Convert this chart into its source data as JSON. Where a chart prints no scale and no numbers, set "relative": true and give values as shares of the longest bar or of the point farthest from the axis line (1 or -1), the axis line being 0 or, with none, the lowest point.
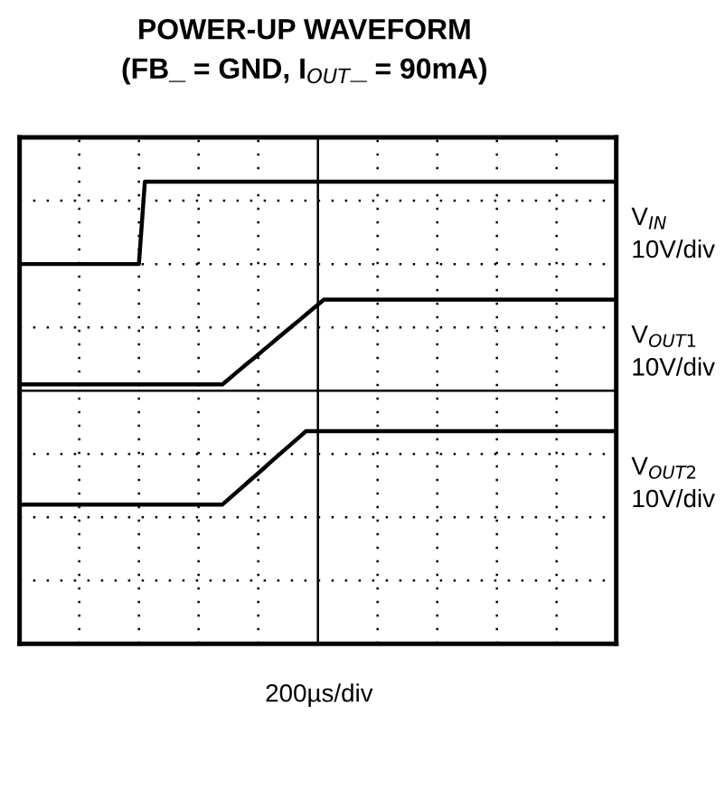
{
  "chart_data": {
    "type": "line",
    "relative": true,
    "title": "POWER-UP WAVEFORM",
    "subtitle": "(FB_ = GND, I$_{OUT}$_ = 90mA)",
    "grid": true,
    "line_style": "solid",
    "annotations": [
      "10V/div",
      "10V/div",
      "10V/div",
      "200µs/div"
    ],
    "categories": [
      null,
      null,
      null,
      null,
      null,
      null,
      null,
      null,
      null,
      null,
      null,
      null,
      null,
      null,
      null,
      null,
      null,
      null,
      null,
      null,
      null,
      null,
      null,
      null,
      null,
      null,
      null,
      null,
      null,
      null,
      null,
      null,
      null,
      null,
      null,
      null,
      null,
      null,
      null,
      null,
      null,
      null,
      null,
      null,
      null,
      null,
      null,
      null,
      null,
      null,
      null,
      null,
      null,
      null,
      null,
      null,
      null,
      null,
      null,
      null,
      null,
      null,
      null,
      null,
      null,
      null,
      null,
      null,
      null,
      null,
      null,
      null,
      null,
      null,
      null,
      null,
      null,
      null,
      null,
      null,
      null,
      null,
      null,
      null,
      null,
      null,
      null,
      null,
      null,
      null,
      null,
      null,
      null,
      null,
      null,
      null,
      null,
      null,
      null,
      null,
      null
    ],
    "series": [
      {
        "name": "V$_{IN}$",
        "color": "#000000",
        "values": [
          0.606,
          0.606,
          0.606,
          0.606,
          0.606,
          0.606,
          0.606,
          0.606,
          0.606,
          0.606,
          0.606,
          0.606,
          0.606,
          0.606,
          0.606,
          0.606,
          0.606,
          0.606,
          0.606,
          0.606,
          0.606,
          1,
          1,
          1,
          1,
          1,
          1,
          1,
          1,
          1,
          1,
          1,
          1,
          1,
          1,
          1,
          1,
          1,
          1,
          1,
          1,
          1,
          1,
          1,
          1,
          1,
          1,
          1,
          1,
          1,
          1,
          1,
          1,
          1,
          1,
          1,
          1,
          1,
          1,
          1,
          1,
          1,
          1,
          1,
          1,
          1,
          1,
          1,
          1,
          1,
          1,
          1,
          1,
          1,
          1,
          1,
          1,
          1,
          1,
          1,
          1,
          1,
          1,
          1,
          1,
          1,
          1,
          1,
          1,
          1,
          1,
          1,
          1,
          1,
          1,
          1,
          1,
          1,
          1,
          1,
          1
        ]
      },
      {
        "name": "V$_{OUT1}$",
        "color": "#000000",
        "values": [
          0.03,
          0.03,
          0.03,
          0.03,
          0.03,
          0.03,
          0.03,
          0.03,
          0.03,
          0.03,
          0.03,
          0.03,
          0.03,
          0.03,
          0.03,
          0.03,
          0.03,
          0.03,
          0.03,
          0.03,
          0.03,
          0.03,
          0.03,
          0.03,
          0.03,
          0.03,
          0.03,
          0.03,
          0.03,
          0.03,
          0.03,
          0.03,
          0.03,
          0.03,
          0.03,
          0.054,
          0.078,
          0.102,
          0.126,
          0.149,
          0.173,
          0.197,
          0.221,
          0.245,
          0.269,
          0.293,
          0.317,
          0.34,
          0.364,
          0.388,
          0.412,
          0.436,
          0.436,
          0.436,
          0.436,
          0.436,
          0.436,
          0.436,
          0.436,
          0.436,
          0.436,
          0.436,
          0.436,
          0.436,
          0.436,
          0.436,
          0.436,
          0.436,
          0.436,
          0.436,
          0.436,
          0.436,
          0.436,
          0.436,
          0.436,
          0.436,
          0.436,
          0.436,
          0.436,
          0.436,
          0.436,
          0.436,
          0.436,
          0.436,
          0.436,
          0.436,
          0.436,
          0.436,
          0.436,
          0.436,
          0.436,
          0.436,
          0.436,
          0.436,
          0.436,
          0.436,
          0.436,
          0.436,
          0.436,
          0.436,
          0.436
        ]
      },
      {
        "name": "V$_{OUT2}$",
        "color": "#000000",
        "values": [
          -0.545,
          -0.545,
          -0.545,
          -0.545,
          -0.545,
          -0.545,
          -0.545,
          -0.545,
          -0.545,
          -0.545,
          -0.545,
          -0.545,
          -0.545,
          -0.545,
          -0.545,
          -0.545,
          -0.545,
          -0.545,
          -0.545,
          -0.545,
          -0.545,
          -0.545,
          -0.545,
          -0.545,
          -0.545,
          -0.545,
          -0.545,
          -0.545,
          -0.545,
          -0.545,
          -0.545,
          -0.545,
          -0.545,
          -0.545,
          -0.545,
          -0.52,
          -0.495,
          -0.47,
          -0.445,
          -0.42,
          -0.395,
          -0.37,
          -0.344,
          -0.319,
          -0.294,
          -0.269,
          -0.244,
          -0.219,
          -0.194,
          -0.194,
          -0.194,
          -0.194,
          -0.194,
          -0.194,
          -0.194,
          -0.194,
          -0.194,
          -0.194,
          -0.194,
          -0.194,
          -0.194,
          -0.194,
          -0.194,
          -0.194,
          -0.194,
          -0.194,
          -0.194,
          -0.194,
          -0.194,
          -0.194,
          -0.194,
          -0.194,
          -0.194,
          -0.194,
          -0.194,
          -0.194,
          -0.194,
          -0.194,
          -0.194,
          -0.194,
          -0.194,
          -0.194,
          -0.194,
          -0.194,
          -0.194,
          -0.194,
          -0.194,
          -0.194,
          -0.194,
          -0.194,
          -0.194,
          -0.194,
          -0.194,
          -0.194,
          -0.194,
          -0.194,
          -0.194,
          -0.194,
          -0.194,
          -0.194,
          -0.194
        ]
      }
    ]
  }
}
